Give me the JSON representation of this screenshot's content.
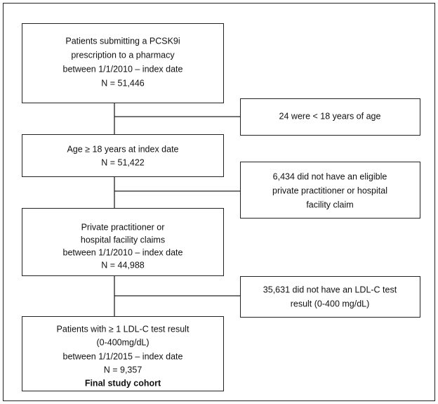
{
  "main_boxes": [
    {
      "lines": [
        "Patients submitting a PCSK9i",
        "prescription to a pharmacy",
        "between 1/1/2010 – index date",
        "N = 51,446"
      ]
    },
    {
      "lines": [
        "Age ≥ 18 years at index date",
        "N = 51,422"
      ]
    },
    {
      "lines": [
        "Private practitioner or",
        "hospital facility claims",
        "between 1/1/2010 – index date",
        "N = 44,988"
      ]
    },
    {
      "lines": [
        "Patients with ≥ 1 LDL-C test result",
        "(0-400mg/dL)",
        "between 1/1/2015 – index date",
        "N = 9,357",
        "Final study cohort"
      ]
    }
  ],
  "exclusion_boxes": [
    {
      "lines": [
        "24 were < 18 years of age"
      ]
    },
    {
      "lines": [
        "6,434 did not have an eligible",
        "private practitioner or hospital",
        "facility claim"
      ]
    },
    {
      "lines": [
        "35,631 did not have an LDL-C test",
        "result (0-400 mg/dL)"
      ]
    }
  ]
}
